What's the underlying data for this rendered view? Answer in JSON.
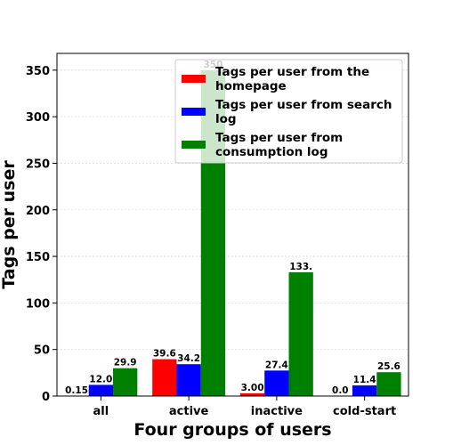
{
  "chart_data": {
    "type": "bar",
    "categories": [
      "all",
      "active",
      "inactive",
      "cold-start"
    ],
    "series": [
      {
        "name": "Tags per user from the homepage",
        "color": "#ff0000",
        "values": [
          0.15,
          39.6,
          3.0,
          0.0
        ],
        "labels": [
          "0.15",
          "39.6",
          "3.00",
          "0.0"
        ]
      },
      {
        "name": "Tags per user from search log",
        "color": "#0000ff",
        "values": [
          12.0,
          34.2,
          27.4,
          11.4
        ],
        "labels": [
          "12.0",
          "34.2",
          "27.4",
          "11.4"
        ]
      },
      {
        "name": "Tags per user from consumption log",
        "color": "#008000",
        "values": [
          29.9,
          350,
          133,
          25.6
        ],
        "labels": [
          "29.9",
          "350",
          "133.",
          "25.6"
        ]
      }
    ],
    "legend_lines": [
      [
        "Tags per user from the",
        "homepage"
      ],
      [
        "Tags per user from search",
        "log"
      ],
      [
        "Tags per user from",
        "consumption log"
      ]
    ],
    "xlabel": "Four groups of users",
    "ylabel": "Tags per user",
    "ylim": [
      0,
      368
    ],
    "yticks": [
      0,
      50,
      100,
      150,
      200,
      250,
      300,
      350
    ],
    "grid": true,
    "legend_position": "top-right"
  }
}
